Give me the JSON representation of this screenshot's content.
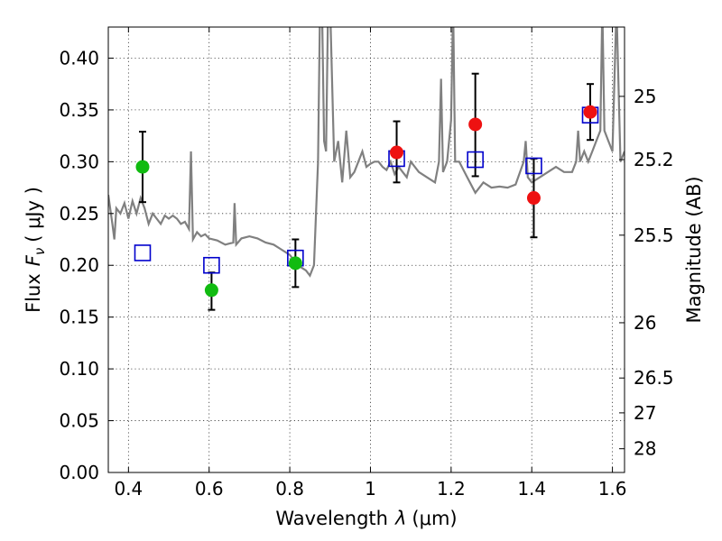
{
  "chart_data": {
    "type": "scatter",
    "xlabel_main": "Wavelength",
    "xlabel_symbol": "λ",
    "xlabel_unit": "(μm)",
    "ylabel_main": "Flux",
    "ylabel_symbol": "F",
    "ylabel_subscript": "ν",
    "ylabel_unit": "( μJy )",
    "y2label": "Magnitude (AB)",
    "xlim": [
      0.35,
      1.63
    ],
    "ylim": [
      0.0,
      0.43
    ],
    "grid": true,
    "xticks": [
      {
        "value": 0.4,
        "label": "0.4"
      },
      {
        "value": 0.6,
        "label": "0.6"
      },
      {
        "value": 0.8,
        "label": "0.8"
      },
      {
        "value": 1.0,
        "label": "1"
      },
      {
        "value": 1.2,
        "label": "1.2"
      },
      {
        "value": 1.4,
        "label": "1.4"
      },
      {
        "value": 1.6,
        "label": "1.6"
      }
    ],
    "yticks": [
      {
        "value": 0.0,
        "label": "0.00"
      },
      {
        "value": 0.05,
        "label": "0.05"
      },
      {
        "value": 0.1,
        "label": "0.10"
      },
      {
        "value": 0.15,
        "label": "0.15"
      },
      {
        "value": 0.2,
        "label": "0.20"
      },
      {
        "value": 0.25,
        "label": "0.25"
      },
      {
        "value": 0.3,
        "label": "0.30"
      },
      {
        "value": 0.35,
        "label": "0.35"
      },
      {
        "value": 0.4,
        "label": "0.40"
      }
    ],
    "y2ticks": [
      {
        "mag": 25,
        "label": "25"
      },
      {
        "mag": 25.2,
        "label": "25.2"
      },
      {
        "mag": 25.5,
        "label": "25.5"
      },
      {
        "mag": 26,
        "label": "26"
      },
      {
        "mag": 26.5,
        "label": "26.5"
      },
      {
        "mag": 27,
        "label": "27"
      },
      {
        "mag": 28,
        "label": "28"
      }
    ],
    "colors": {
      "spectrum": "#808080",
      "green_points": "#11bb11",
      "red_points": "#ee1111",
      "model_squares": "#0000cc",
      "error_bars": "#000000"
    },
    "spectrum": {
      "x": [
        0.35,
        0.36,
        0.365,
        0.37,
        0.38,
        0.39,
        0.4,
        0.41,
        0.42,
        0.43,
        0.44,
        0.45,
        0.46,
        0.47,
        0.48,
        0.49,
        0.5,
        0.51,
        0.52,
        0.53,
        0.54,
        0.55,
        0.555,
        0.56,
        0.57,
        0.58,
        0.59,
        0.6,
        0.62,
        0.64,
        0.66,
        0.663,
        0.667,
        0.68,
        0.7,
        0.72,
        0.74,
        0.76,
        0.78,
        0.8,
        0.82,
        0.84,
        0.85,
        0.86,
        0.87,
        0.875,
        0.88,
        0.885,
        0.89,
        0.895,
        0.9,
        0.91,
        0.92,
        0.93,
        0.94,
        0.95,
        0.96,
        0.97,
        0.98,
        0.99,
        1.0,
        1.01,
        1.02,
        1.03,
        1.04,
        1.05,
        1.06,
        1.07,
        1.08,
        1.09,
        1.1,
        1.12,
        1.14,
        1.16,
        1.17,
        1.175,
        1.18,
        1.19,
        1.2,
        1.205,
        1.21,
        1.22,
        1.24,
        1.26,
        1.28,
        1.3,
        1.32,
        1.34,
        1.36,
        1.38,
        1.385,
        1.39,
        1.4,
        1.42,
        1.44,
        1.46,
        1.48,
        1.5,
        1.51,
        1.515,
        1.52,
        1.53,
        1.54,
        1.55,
        1.56,
        1.57,
        1.575,
        1.58,
        1.59,
        1.6,
        1.61,
        1.62,
        1.63
      ],
      "y": [
        0.268,
        0.24,
        0.225,
        0.255,
        0.25,
        0.26,
        0.245,
        0.262,
        0.25,
        0.265,
        0.255,
        0.24,
        0.25,
        0.245,
        0.24,
        0.248,
        0.245,
        0.248,
        0.245,
        0.24,
        0.242,
        0.235,
        0.31,
        0.225,
        0.232,
        0.228,
        0.23,
        0.226,
        0.224,
        0.22,
        0.222,
        0.26,
        0.22,
        0.226,
        0.228,
        0.226,
        0.222,
        0.22,
        0.215,
        0.21,
        0.2,
        0.195,
        0.19,
        0.2,
        0.3,
        0.45,
        0.45,
        0.32,
        0.31,
        0.45,
        0.45,
        0.3,
        0.32,
        0.28,
        0.33,
        0.285,
        0.29,
        0.3,
        0.31,
        0.295,
        0.298,
        0.3,
        0.3,
        0.295,
        0.292,
        0.3,
        0.288,
        0.295,
        0.29,
        0.285,
        0.3,
        0.29,
        0.285,
        0.28,
        0.3,
        0.38,
        0.29,
        0.3,
        0.34,
        0.45,
        0.3,
        0.3,
        0.285,
        0.27,
        0.28,
        0.275,
        0.276,
        0.275,
        0.278,
        0.3,
        0.32,
        0.285,
        0.28,
        0.285,
        0.29,
        0.295,
        0.29,
        0.29,
        0.3,
        0.33,
        0.3,
        0.31,
        0.3,
        0.31,
        0.32,
        0.33,
        0.45,
        0.33,
        0.32,
        0.31,
        0.45,
        0.3,
        0.31
      ]
    },
    "series": [
      {
        "marker": "circle",
        "color": "green",
        "points": [
          {
            "x": 0.435,
            "y": 0.295,
            "err": [
              0.034,
              0.034
            ]
          },
          {
            "x": 0.606,
            "y": 0.176,
            "err": [
              0.019,
              0.017
            ]
          },
          {
            "x": 0.814,
            "y": 0.202,
            "err": [
              0.023,
              0.023
            ]
          }
        ]
      },
      {
        "marker": "circle",
        "color": "red",
        "points": [
          {
            "x": 1.065,
            "y": 0.309,
            "err": [
              0.029,
              0.03
            ]
          },
          {
            "x": 1.26,
            "y": 0.336,
            "err": [
              0.05,
              0.049
            ]
          },
          {
            "x": 1.405,
            "y": 0.265,
            "err": [
              0.038,
              0.038
            ]
          },
          {
            "x": 1.545,
            "y": 0.348,
            "err": [
              0.027,
              0.027
            ]
          }
        ]
      },
      {
        "marker": "open-square",
        "color": "blue",
        "points": [
          {
            "x": 0.435,
            "y": 0.212
          },
          {
            "x": 0.606,
            "y": 0.2
          },
          {
            "x": 0.814,
            "y": 0.207
          },
          {
            "x": 1.065,
            "y": 0.303
          },
          {
            "x": 1.26,
            "y": 0.302
          },
          {
            "x": 1.405,
            "y": 0.296
          },
          {
            "x": 1.545,
            "y": 0.345
          }
        ]
      }
    ]
  }
}
